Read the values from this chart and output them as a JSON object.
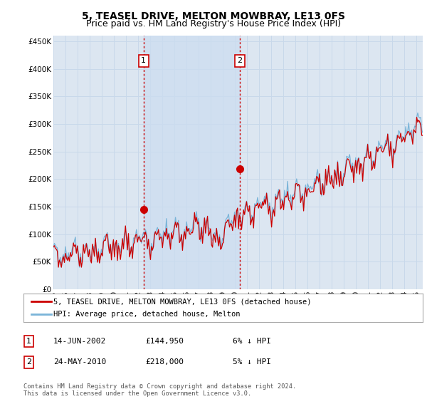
{
  "title": "5, TEASEL DRIVE, MELTON MOWBRAY, LE13 0FS",
  "subtitle": "Price paid vs. HM Land Registry's House Price Index (HPI)",
  "xlim_start": 1995.0,
  "xlim_end": 2025.5,
  "ylim": [
    0,
    460000
  ],
  "yticks": [
    0,
    50000,
    100000,
    150000,
    200000,
    250000,
    300000,
    350000,
    400000,
    450000
  ],
  "background_color": "#ffffff",
  "plot_bg_color": "#dce6f1",
  "grid_color": "#c8d8ea",
  "hpi_color": "#7ab4d8",
  "price_color": "#cc0000",
  "sale1_x": 2002.45,
  "sale1_y": 144950,
  "sale2_x": 2010.38,
  "sale2_y": 218000,
  "vline_color": "#cc0000",
  "shade_color": "#ccddf0",
  "marker_color": "#cc0000",
  "legend_label_price": "5, TEASEL DRIVE, MELTON MOWBRAY, LE13 0FS (detached house)",
  "legend_label_hpi": "HPI: Average price, detached house, Melton",
  "table_row1": [
    "1",
    "14-JUN-2002",
    "£144,950",
    "6% ↓ HPI"
  ],
  "table_row2": [
    "2",
    "24-MAY-2010",
    "£218,000",
    "5% ↓ HPI"
  ],
  "footer": "Contains HM Land Registry data © Crown copyright and database right 2024.\nThis data is licensed under the Open Government Licence v3.0.",
  "title_fontsize": 10,
  "subtitle_fontsize": 9,
  "tick_fontsize": 7.5
}
